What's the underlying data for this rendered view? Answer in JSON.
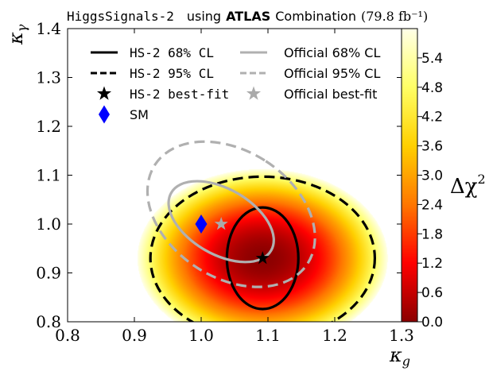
{
  "title": {
    "prefix": "HiggsSignals-2",
    "middle": "using",
    "atlas": "ATLAS",
    "suffix": "Combination",
    "lumi": "(79.8 fb⁻¹)"
  },
  "chart_data": {
    "type": "heatmap",
    "xlabel": "κg",
    "ylabel": "κγ",
    "xlim": [
      0.8,
      1.3
    ],
    "ylim": [
      0.8,
      1.4
    ],
    "xticks": [
      0.8,
      0.9,
      1.0,
      1.1,
      1.2,
      1.3
    ],
    "xtick_labels": [
      "0.8",
      "0.9",
      "1.0",
      "1.1",
      "1.2",
      "1.3"
    ],
    "yticks": [
      0.8,
      0.9,
      1.0,
      1.1,
      1.2,
      1.3,
      1.4
    ],
    "ytick_labels": [
      "0.8",
      "0.9",
      "1.0",
      "1.1",
      "1.2",
      "1.3",
      "1.4"
    ],
    "colorbar": {
      "label": "Δχ²",
      "range": [
        0.0,
        6.0
      ],
      "ticks": [
        0.0,
        0.6,
        1.2,
        1.8,
        2.4,
        3.0,
        3.6,
        4.2,
        4.8,
        5.4
      ],
      "tick_labels": [
        "0.0",
        "0.6",
        "1.2",
        "1.8",
        "2.4",
        "3.0",
        "3.6",
        "4.2",
        "4.8",
        "5.4"
      ],
      "colors": [
        "#8b0000",
        "#ff0000",
        "#ff7700",
        "#ffd000",
        "#ffff66",
        "#ffffe8"
      ]
    },
    "heatmap_model": {
      "center": [
        1.092,
        0.93
      ],
      "sigma_x": 0.0765,
      "sigma_y": 0.0745,
      "drawn_up_to": 6.0
    },
    "contours": [
      {
        "name": "HS-2 68% CL",
        "center": [
          1.092,
          0.93
        ],
        "semi_axes": [
          0.0535,
          0.104
        ],
        "rotation_deg": 0,
        "color": "#000000",
        "dashed": false
      },
      {
        "name": "HS-2 95% CL",
        "center": [
          1.092,
          0.93
        ],
        "semi_axes": [
          0.168,
          0.167
        ],
        "rotation_deg": 0,
        "color": "#000000",
        "dashed": true
      },
      {
        "name": "Official 68% CL",
        "center": [
          1.03,
          1.005
        ],
        "semi_axes": [
          0.049,
          0.118
        ],
        "rotation_deg": -60,
        "color": "#b0b0b0",
        "dashed": false
      },
      {
        "name": "Official 95% CL",
        "center": [
          1.045,
          1.02
        ],
        "semi_axes": [
          0.095,
          0.186
        ],
        "rotation_deg": -57,
        "color": "#b0b0b0",
        "dashed": true
      }
    ],
    "points": [
      {
        "name": "HS-2 best-fit",
        "x": 1.092,
        "y": 0.93,
        "marker": "star",
        "color": "#000000"
      },
      {
        "name": "Official best-fit",
        "x": 1.03,
        "y": 1.0,
        "marker": "star",
        "color": "#aaaaaa"
      },
      {
        "name": "SM",
        "x": 1.0,
        "y": 1.0,
        "marker": "diamond",
        "color": "#0000ff"
      }
    ],
    "legend": {
      "placement": "top-left",
      "entries": [
        {
          "label": "HS-2 68% CL",
          "style": "solid",
          "color": "#000000"
        },
        {
          "label": "Official 68% CL",
          "style": "solid",
          "color": "#b0b0b0"
        },
        {
          "label": "HS-2 95% CL",
          "style": "dashed",
          "color": "#000000"
        },
        {
          "label": "Official 95% CL",
          "style": "dashed",
          "color": "#b0b0b0"
        },
        {
          "label": "HS-2 best-fit",
          "style": "star",
          "color": "#000000"
        },
        {
          "label": "Official best-fit",
          "style": "star",
          "color": "#aaaaaa"
        },
        {
          "label": "SM",
          "style": "diamond",
          "color": "#0000ff"
        }
      ]
    }
  }
}
